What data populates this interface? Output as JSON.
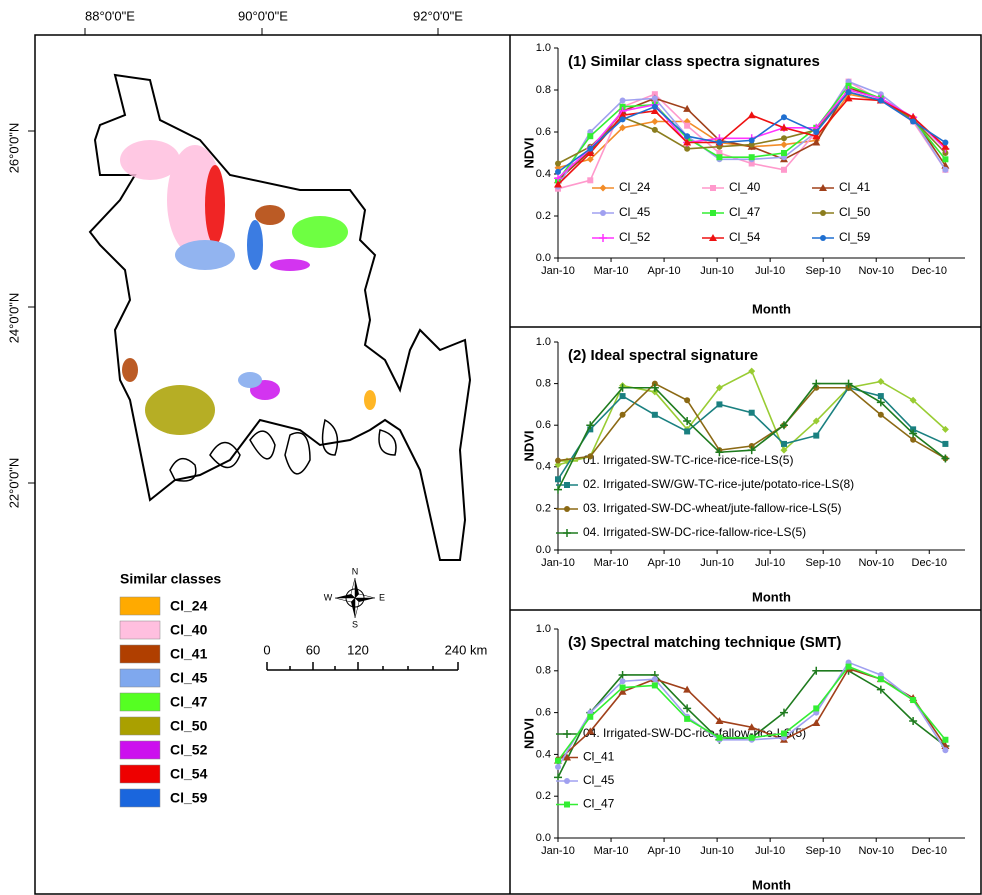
{
  "map": {
    "lon_labels": [
      "88°0'0\"E",
      "90°0'0\"E",
      "92°0'0\"E"
    ],
    "lat_labels": [
      "26°0'0\"N",
      "24°0'0\"N",
      "22°0'0\"N"
    ],
    "legend_title": "Similar classes",
    "legend": [
      {
        "name": "Cl_24",
        "color": "#ffaa00"
      },
      {
        "name": "Cl_40",
        "color": "#ffbfdf"
      },
      {
        "name": "Cl_41",
        "color": "#b03f00"
      },
      {
        "name": "Cl_45",
        "color": "#7fa8ee"
      },
      {
        "name": "Cl_47",
        "color": "#55ff22"
      },
      {
        "name": "Cl_50",
        "color": "#aaa000"
      },
      {
        "name": "Cl_52",
        "color": "#cc11ee"
      },
      {
        "name": "Cl_54",
        "color": "#ee0000"
      },
      {
        "name": "Cl_59",
        "color": "#1a66dd"
      }
    ],
    "compass": [
      "N",
      "E",
      "S",
      "W"
    ],
    "scale_labels": [
      "0",
      "60",
      "120",
      "240 km"
    ]
  },
  "chart_data": [
    {
      "type": "line",
      "title": "(1) Similar class spectra signatures",
      "x_label": "Month",
      "y_label": "NDVI",
      "x": [
        0,
        28,
        56,
        84,
        112,
        140,
        168,
        196,
        224,
        252,
        280,
        308,
        336
      ],
      "xlim": [
        0,
        353
      ],
      "xticks": [
        {
          "value": 0,
          "label": "Jan-10"
        },
        {
          "value": 46,
          "label": "Mar-10"
        },
        {
          "value": 92,
          "label": "Apr-10"
        },
        {
          "value": 138,
          "label": "Jun-10"
        },
        {
          "value": 184,
          "label": "Jul-10"
        },
        {
          "value": 230,
          "label": "Sep-10"
        },
        {
          "value": 276,
          "label": "Nov-10"
        },
        {
          "value": 322,
          "label": "Dec-10"
        }
      ],
      "ylim": [
        0,
        1
      ],
      "yticks": [
        {
          "value": 0,
          "label": "0.0"
        },
        0.2,
        0.4,
        0.6,
        0.8,
        {
          "value": 1,
          "label": "1.0"
        }
      ],
      "series": [
        {
          "name": "Cl_24",
          "color": "#f28c28",
          "marker": "diamond",
          "values": [
            0.43,
            0.47,
            0.62,
            0.65,
            0.65,
            0.55,
            0.53,
            0.54,
            0.56,
            0.78,
            0.75,
            0.67,
            0.52
          ]
        },
        {
          "name": "Cl_40",
          "color": "#ff99cc",
          "marker": "square",
          "values": [
            0.33,
            0.37,
            0.72,
            0.78,
            0.63,
            0.5,
            0.45,
            0.42,
            0.6,
            0.84,
            0.75,
            0.65,
            0.42
          ]
        },
        {
          "name": "Cl_41",
          "color": "#a0401a",
          "marker": "triangle",
          "values": [
            0.37,
            0.51,
            0.7,
            0.76,
            0.71,
            0.56,
            0.53,
            0.47,
            0.55,
            0.81,
            0.76,
            0.67,
            0.44
          ]
        },
        {
          "name": "Cl_45",
          "color": "#a0a0f0",
          "marker": "circle",
          "values": [
            0.34,
            0.6,
            0.75,
            0.76,
            0.58,
            0.47,
            0.47,
            0.48,
            0.6,
            0.84,
            0.78,
            0.66,
            0.42
          ]
        },
        {
          "name": "Cl_47",
          "color": "#33ee33",
          "marker": "square",
          "values": [
            0.37,
            0.58,
            0.72,
            0.73,
            0.57,
            0.48,
            0.48,
            0.5,
            0.62,
            0.82,
            0.76,
            0.66,
            0.47
          ]
        },
        {
          "name": "Cl_50",
          "color": "#8b7d1e",
          "marker": "circle",
          "values": [
            0.45,
            0.53,
            0.67,
            0.61,
            0.52,
            0.53,
            0.54,
            0.57,
            0.61,
            0.79,
            0.75,
            0.66,
            0.5
          ]
        },
        {
          "name": "Cl_52",
          "color": "#ff33ff",
          "marker": "plus",
          "values": [
            0.38,
            0.52,
            0.7,
            0.73,
            0.55,
            0.57,
            0.57,
            0.62,
            0.62,
            0.8,
            0.76,
            0.67,
            0.52
          ]
        },
        {
          "name": "Cl_54",
          "color": "#ee1111",
          "marker": "triangle",
          "values": [
            0.35,
            0.5,
            0.68,
            0.7,
            0.55,
            0.55,
            0.68,
            0.62,
            0.58,
            0.76,
            0.75,
            0.67,
            0.53
          ]
        },
        {
          "name": "Cl_59",
          "color": "#1f6fd0",
          "marker": "circle",
          "values": [
            0.41,
            0.52,
            0.66,
            0.72,
            0.58,
            0.55,
            0.56,
            0.67,
            0.6,
            0.79,
            0.75,
            0.65,
            0.55
          ]
        }
      ]
    },
    {
      "type": "line",
      "title": "(2) Ideal spectral signature",
      "x_label": "Month",
      "y_label": "NDVI",
      "x": [
        0,
        28,
        56,
        84,
        112,
        140,
        168,
        196,
        224,
        252,
        280,
        308,
        336
      ],
      "xlim": [
        0,
        353
      ],
      "xticks": [
        {
          "value": 0,
          "label": "Jan-10"
        },
        {
          "value": 46,
          "label": "Mar-10"
        },
        {
          "value": 92,
          "label": "Apr-10"
        },
        {
          "value": 138,
          "label": "Jun-10"
        },
        {
          "value": 184,
          "label": "Jul-10"
        },
        {
          "value": 230,
          "label": "Sep-10"
        },
        {
          "value": 276,
          "label": "Nov-10"
        },
        {
          "value": 322,
          "label": "Dec-10"
        }
      ],
      "ylim": [
        0,
        1
      ],
      "yticks": [
        {
          "value": 0,
          "label": "0.0"
        },
        0.2,
        0.4,
        0.6,
        0.8,
        {
          "value": 1,
          "label": "1.0"
        }
      ],
      "series": [
        {
          "name": "01. Irrigated-SW-TC-rice-rice-rice-LS(5)",
          "color": "#99cc33",
          "marker": "diamond",
          "values": [
            0.41,
            0.45,
            0.79,
            0.76,
            0.58,
            0.78,
            0.86,
            0.48,
            0.62,
            0.78,
            0.81,
            0.72,
            0.58
          ]
        },
        {
          "name": "02. Irrigated-SW/GW-TC-rice-jute/potato-rice-LS(8)",
          "color": "#1a8080",
          "marker": "square",
          "values": [
            0.34,
            0.58,
            0.74,
            0.65,
            0.57,
            0.7,
            0.66,
            0.51,
            0.55,
            0.78,
            0.74,
            0.58,
            0.51
          ]
        },
        {
          "name": "03. Irrigated-SW-DC-wheat/jute-fallow-rice-LS(5)",
          "color": "#8b6914",
          "marker": "circle",
          "values": [
            0.43,
            0.45,
            0.65,
            0.8,
            0.72,
            0.48,
            0.5,
            0.6,
            0.78,
            0.78,
            0.65,
            0.53,
            0.44
          ]
        },
        {
          "name": "04. Irrigated-SW-DC-rice-fallow-rice-LS(5)",
          "color": "#1e7b1e",
          "marker": "plus",
          "values": [
            0.29,
            0.6,
            0.78,
            0.78,
            0.62,
            0.47,
            0.48,
            0.6,
            0.8,
            0.8,
            0.71,
            0.56,
            0.44
          ]
        }
      ]
    },
    {
      "type": "line",
      "title": "(3) Spectral matching technique (SMT)",
      "x_label": "Month",
      "y_label": "NDVI",
      "x": [
        0,
        28,
        56,
        84,
        112,
        140,
        168,
        196,
        224,
        252,
        280,
        308,
        336
      ],
      "xlim": [
        0,
        353
      ],
      "xticks": [
        {
          "value": 0,
          "label": "Jan-10"
        },
        {
          "value": 46,
          "label": "Mar-10"
        },
        {
          "value": 92,
          "label": "Apr-10"
        },
        {
          "value": 138,
          "label": "Jun-10"
        },
        {
          "value": 184,
          "label": "Jul-10"
        },
        {
          "value": 230,
          "label": "Sep-10"
        },
        {
          "value": 276,
          "label": "Nov-10"
        },
        {
          "value": 322,
          "label": "Dec-10"
        }
      ],
      "ylim": [
        0,
        1
      ],
      "yticks": [
        {
          "value": 0,
          "label": "0.0"
        },
        0.2,
        0.4,
        0.6,
        0.8,
        {
          "value": 1,
          "label": "1.0"
        }
      ],
      "series": [
        {
          "name": "04. Irrigated-SW-DC-rice-fallow-rice-LS(5)",
          "color": "#1e7b1e",
          "marker": "plus",
          "values": [
            0.29,
            0.6,
            0.78,
            0.78,
            0.62,
            0.47,
            0.48,
            0.6,
            0.8,
            0.8,
            0.71,
            0.56,
            0.44
          ]
        },
        {
          "name": "Cl_41",
          "color": "#a0401a",
          "marker": "triangle",
          "values": [
            0.37,
            0.51,
            0.7,
            0.76,
            0.71,
            0.56,
            0.53,
            0.47,
            0.55,
            0.81,
            0.76,
            0.67,
            0.44
          ]
        },
        {
          "name": "Cl_45",
          "color": "#a0a0f0",
          "marker": "circle",
          "values": [
            0.34,
            0.6,
            0.75,
            0.76,
            0.58,
            0.47,
            0.47,
            0.48,
            0.6,
            0.84,
            0.78,
            0.66,
            0.42
          ]
        },
        {
          "name": "Cl_47",
          "color": "#33ee33",
          "marker": "square",
          "values": [
            0.37,
            0.58,
            0.72,
            0.73,
            0.57,
            0.48,
            0.48,
            0.5,
            0.62,
            0.82,
            0.76,
            0.66,
            0.47
          ]
        }
      ]
    }
  ]
}
